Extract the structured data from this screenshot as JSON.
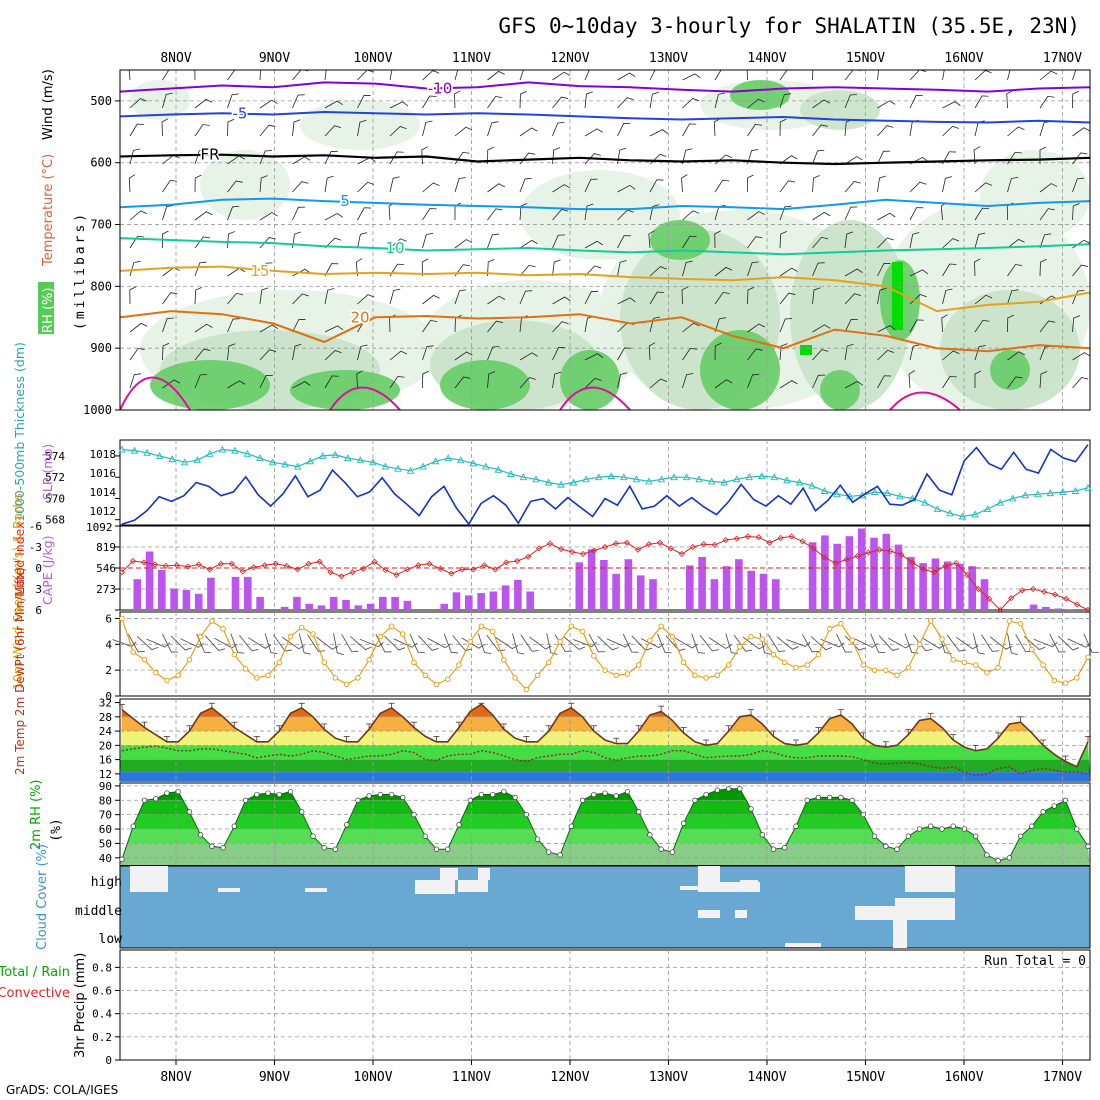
{
  "title": "GFS 0~10day 3-hourly for SHALATIN (35.5E, 23N)",
  "credit": "GrADS: COLA/IGES",
  "date_labels": [
    "8NOV",
    "9NOV",
    "10NOV",
    "11NOV",
    "12NOV",
    "13NOV",
    "14NOV",
    "15NOV",
    "16NOV",
    "17NOV"
  ],
  "colors": {
    "frame": "#000000",
    "grid": "#a0a0a0",
    "rh_light": "#e4f2e4",
    "rh_mid": "#c8e2c8",
    "rh_dark": "#66cc66",
    "rh_bright": "#00dd00",
    "iso_m10": "#8800cc",
    "iso_m5": "#2244dd",
    "iso_fr": "#000000",
    "iso_5": "#1199ee",
    "iso_10": "#11cc99",
    "iso_15": "#e6a020",
    "iso_20": "#e07010",
    "iso_25": "#dd1199",
    "slp": "#1133cc",
    "thickness": "#22bbbb",
    "lifted": "#dd2222",
    "cape": "#bb55ee",
    "wind": "#ee9900",
    "barb": "#555555",
    "temp": "#6b3a1a",
    "dewpt": "#8a2a2a",
    "rh2m": "#00aa00",
    "cloud": "#6aa8d4",
    "cloud_white": "#f2f2f2",
    "precip_total": "#00aa00",
    "precip_conv": "#ee2222"
  },
  "chart_data": [
    {
      "panel": "upper_air",
      "type": "contour",
      "ylabel_parts": [
        "RH (%)",
        "Temperature (°C)",
        "Wind (m/s)"
      ],
      "ylabel_unit": "(millibars)",
      "y_ticks": [
        500,
        600,
        700,
        800,
        900,
        1000
      ],
      "ylim": [
        1000,
        450
      ],
      "isotherms": [
        {
          "label": "-10",
          "level_mb": [
            485,
            480,
            475,
            478,
            470,
            472,
            480,
            478,
            470,
            476,
            478,
            482,
            485,
            480,
            478,
            480,
            482,
            485,
            480,
            478
          ]
        },
        {
          "label": "-5",
          "level_mb": [
            525,
            522,
            520,
            522,
            518,
            520,
            522,
            520,
            522,
            525,
            528,
            530,
            528,
            526,
            530,
            532,
            534,
            535,
            532,
            535
          ]
        },
        {
          "label": "FR",
          "level_mb": [
            590,
            588,
            587,
            590,
            588,
            592,
            590,
            598,
            595,
            592,
            596,
            598,
            596,
            600,
            602,
            600,
            598,
            596,
            595,
            592
          ]
        },
        {
          "label": "5",
          "level_mb": [
            672,
            668,
            660,
            658,
            662,
            665,
            668,
            670,
            672,
            675,
            675,
            670,
            672,
            675,
            668,
            660,
            665,
            670,
            665,
            662
          ]
        },
        {
          "label": "10",
          "level_mb": [
            722,
            725,
            728,
            730,
            735,
            738,
            742,
            740,
            738,
            742,
            745,
            742,
            745,
            748,
            745,
            742,
            740,
            738,
            735,
            732
          ]
        },
        {
          "label": "15",
          "level_mb": [
            775,
            770,
            768,
            775,
            780,
            778,
            780,
            778,
            782,
            780,
            785,
            788,
            790,
            785,
            790,
            800,
            840,
            830,
            825,
            810
          ]
        },
        {
          "label": "20",
          "level_mb": [
            850,
            840,
            845,
            860,
            890,
            850,
            848,
            852,
            850,
            845,
            860,
            850,
            880,
            900,
            870,
            880,
            900,
            905,
            895,
            900
          ]
        }
      ]
    },
    {
      "panel": "slp_thickness",
      "type": "line",
      "ylabel": "1000-500mb Thickness (dm)",
      "ylabel2": "SLP (mb)",
      "left_ticks": [
        568,
        570,
        572,
        574
      ],
      "right_ticks": [
        1012,
        1014,
        1016,
        1018
      ],
      "ylim_left": [
        567.5,
        575.5
      ],
      "ylim_right": [
        1010.5,
        1019.5
      ],
      "corner_label": "1092",
      "series": [
        {
          "name": "1000-500mb Thickness",
          "axis": "left",
          "values": [
            574.6,
            574.5,
            574.3,
            574.0,
            573.7,
            573.4,
            573.6,
            574.2,
            574.6,
            574.5,
            574.2,
            573.8,
            573.4,
            573.2,
            573.0,
            573.5,
            574.0,
            574.1,
            573.8,
            573.6,
            573.4,
            573.0,
            572.8,
            572.6,
            573.0,
            573.5,
            573.8,
            573.6,
            573.3,
            573.0,
            572.7,
            572.3,
            572.0,
            571.8,
            571.5,
            571.3,
            571.5,
            571.8,
            572.0,
            572.1,
            572.0,
            571.8,
            571.6,
            571.8,
            572.0,
            572.0,
            571.8,
            571.6,
            571.5,
            571.8,
            572.0,
            572.1,
            572.0,
            571.7,
            571.5,
            571.2,
            570.7,
            570.4,
            570.2,
            570.3,
            570.6,
            570.5,
            570.2,
            570.0,
            569.6,
            569.0,
            568.6,
            568.3,
            568.5,
            569.0,
            569.6,
            570.0,
            570.3,
            570.4,
            570.5,
            570.6,
            570.7,
            571.0
          ]
        },
        {
          "name": "SLP",
          "axis": "right",
          "values": [
            1010.6,
            1011.0,
            1012.0,
            1013.5,
            1013.0,
            1013.6,
            1015.0,
            1014.6,
            1013.6,
            1014.0,
            1015.6,
            1013.7,
            1012.5,
            1013.8,
            1015.7,
            1013.5,
            1014.2,
            1016.3,
            1015.0,
            1013.5,
            1014.0,
            1015.5,
            1013.8,
            1012.7,
            1011.5,
            1013.5,
            1014.6,
            1012.3,
            1010.6,
            1012.8,
            1013.6,
            1012.6,
            1010.7,
            1013.0,
            1013.3,
            1012.2,
            1013.4,
            1012.4,
            1011.4,
            1013.3,
            1012.6,
            1014.6,
            1012.2,
            1012.5,
            1013.6,
            1012.5,
            1013.4,
            1012.4,
            1011.6,
            1013.0,
            1014.8,
            1013.2,
            1012.5,
            1013.6,
            1012.7,
            1014.4,
            1012.0,
            1013.1,
            1014.7,
            1012.9,
            1013.8,
            1014.6,
            1012.7,
            1012.6,
            1013.2,
            1015.9,
            1014.2,
            1013.7,
            1017.3,
            1018.7,
            1017.0,
            1016.4,
            1018.2,
            1016.4,
            1016.0,
            1018.5,
            1017.6,
            1017.2,
            1019.0
          ]
        }
      ]
    },
    {
      "panel": "cape_lifted",
      "type": "bar+line",
      "ylabel": "Lifted Index",
      "ylabel2": "CAPE (J/kg)",
      "left_ticks": [
        "-6",
        "-3",
        "0",
        "3",
        "6"
      ],
      "right_ticks": [
        "273",
        "546",
        "819"
      ],
      "ylim_lifted": [
        6,
        -6
      ],
      "ylim_cape": [
        0,
        1092
      ],
      "series": [
        {
          "name": "CAPE",
          "type": "bar",
          "values": [
            0,
            400,
            760,
            520,
            280,
            260,
            210,
            420,
            0,
            430,
            430,
            170,
            0,
            40,
            170,
            80,
            60,
            170,
            130,
            60,
            80,
            170,
            170,
            120,
            0,
            0,
            80,
            230,
            190,
            220,
            240,
            320,
            390,
            240,
            0,
            0,
            0,
            620,
            790,
            650,
            470,
            660,
            450,
            400,
            0,
            0,
            580,
            690,
            400,
            570,
            660,
            510,
            470,
            400,
            0,
            0,
            880,
            970,
            860,
            960,
            1060,
            940,
            990,
            850,
            690,
            610,
            670,
            630,
            600,
            570,
            400,
            0,
            0,
            0,
            70,
            40,
            20,
            10,
            0
          ]
        },
        {
          "name": "Lifted Index",
          "type": "line",
          "values": [
            0.6,
            -1.0,
            -0.8,
            -0.5,
            -0.3,
            -0.4,
            -0.2,
            -0.5,
            0.2,
            -0.6,
            -0.6,
            0.5,
            -0.1,
            -0.4,
            -0.6,
            -0.3,
            0.2,
            -0.6,
            -0.9,
            0.6,
            1.2,
            0.6,
            0.1,
            -0.9,
            0.3,
            1.0,
            0.2,
            -0.4,
            -0.6,
            0.1,
            0.8,
            0.2,
            0.2,
            -0.4,
            0.2,
            -0.8,
            -1.0,
            -1.6,
            -2.8,
            -3.5,
            -2.7,
            -2.3,
            -2.0,
            -2.5,
            -3.0,
            -3.5,
            -3.6,
            -2.6,
            -3.4,
            -3.6,
            -2.8,
            -2.0,
            -3.0,
            -3.4,
            -3.3,
            -4.0,
            -4.2,
            -4.5,
            -4.4,
            -3.6,
            -4.3,
            -4.5,
            -3.8,
            -2.8,
            -1.5,
            -0.7,
            -1.2,
            -1.7,
            -2.2,
            -2.6,
            -2.4,
            -1.9,
            -0.8,
            0.2,
            0.6,
            -0.3,
            -0.7,
            1.0,
            3.0,
            4.4,
            6.0,
            4.3,
            3.2,
            3.0,
            3.4,
            3.8,
            4.4,
            5.2,
            6.0
          ]
        }
      ],
      "reference_line": 0
    },
    {
      "panel": "wind10m",
      "type": "line",
      "ylabel": "10m Wind Speed (m/s) & Barbs",
      "y_ticks": [
        0,
        2,
        4,
        6
      ],
      "ylim": [
        0,
        6.5
      ],
      "series": [
        {
          "name": "10m Wind Speed",
          "values": [
            6.0,
            3.4,
            2.8,
            1.8,
            1.2,
            1.6,
            2.8,
            4.6,
            5.8,
            5.2,
            3.2,
            2.1,
            1.4,
            1.6,
            2.6,
            4.6,
            5.3,
            4.8,
            2.6,
            1.4,
            0.9,
            1.4,
            2.8,
            4.6,
            5.4,
            4.8,
            2.6,
            1.6,
            0.9,
            1.3,
            2.4,
            4.2,
            5.4,
            5.0,
            2.8,
            1.4,
            0.5,
            1.6,
            2.6,
            4.2,
            5.4,
            5.0,
            3.1,
            2.0,
            1.6,
            1.7,
            2.4,
            4.3,
            5.4,
            4.6,
            2.6,
            1.6,
            1.4,
            1.6,
            2.4,
            3.8,
            4.6,
            4.4,
            3.2,
            2.6,
            2.2,
            2.4,
            3.2,
            5.2,
            5.6,
            4.3,
            2.4,
            2.0,
            2.0,
            1.6,
            2.2,
            4.0,
            5.8,
            4.4,
            2.8,
            2.6,
            2.4,
            1.8,
            2.2,
            5.8,
            5.6,
            3.6,
            2.4,
            1.2,
            1.0,
            1.4,
            3.0
          ]
        }
      ]
    },
    {
      "panel": "temp2m",
      "type": "area",
      "ylabel": "2m Temp 2m DewPt (6hr Min/Max)",
      "y_ticks": [
        12,
        16,
        20,
        24,
        28,
        32
      ],
      "ylim": [
        10,
        33
      ],
      "series": [
        {
          "name": "2m Temp",
          "values": [
            30.0,
            27.5,
            25.0,
            23.0,
            21.0,
            21.0,
            24.0,
            29.0,
            30.5,
            28.0,
            25.0,
            23.0,
            21.0,
            21.0,
            24.0,
            29.0,
            30.5,
            28.0,
            24.5,
            22.0,
            21.0,
            21.0,
            24.5,
            29.0,
            30.5,
            28.0,
            25.0,
            22.5,
            21.0,
            21.0,
            25.0,
            29.5,
            31.5,
            28.5,
            24.5,
            22.0,
            21.0,
            21.0,
            24.0,
            29.0,
            30.5,
            28.0,
            24.0,
            21.5,
            20.5,
            20.5,
            24.0,
            28.5,
            29.5,
            27.0,
            23.5,
            21.0,
            20.0,
            20.5,
            24.0,
            28.0,
            28.5,
            26.0,
            22.5,
            20.5,
            20.0,
            20.5,
            23.5,
            27.5,
            28.5,
            26.0,
            22.0,
            20.0,
            19.5,
            20.0,
            23.0,
            27.0,
            27.5,
            25.0,
            21.5,
            19.5,
            18.5,
            19.0,
            22.0,
            26.0,
            26.5,
            23.5,
            20.0,
            17.5,
            15.5,
            14.0,
            21.0
          ]
        },
        {
          "name": "2m DewPt",
          "values": [
            18.5,
            19.0,
            19.5,
            19.8,
            19.2,
            18.5,
            18.5,
            19.0,
            19.0,
            18.5,
            18.0,
            17.5,
            16.5,
            17.0,
            17.5,
            17.0,
            17.5,
            18.5,
            18.0,
            17.0,
            16.0,
            16.5,
            17.0,
            17.0,
            17.5,
            18.5,
            18.0,
            16.0,
            15.8,
            17.0,
            17.5,
            17.5,
            18.5,
            18.0,
            17.0,
            16.0,
            15.5,
            16.5,
            17.0,
            17.5,
            17.5,
            18.5,
            18.0,
            16.5,
            15.8,
            16.5,
            17.0,
            17.0,
            17.5,
            18.5,
            18.5,
            17.5,
            16.5,
            16.8,
            17.0,
            17.0,
            17.5,
            18.5,
            18.0,
            17.0,
            16.5,
            16.5,
            17.0,
            17.0,
            17.0,
            16.8,
            16.0,
            15.0,
            14.8,
            15.0,
            15.2,
            14.8,
            14.0,
            13.5,
            14.0,
            12.5,
            11.5,
            12.0,
            13.5,
            14.0,
            12.0,
            13.0,
            13.5,
            13.0,
            12.5,
            12.5,
            12.0
          ]
        }
      ]
    },
    {
      "panel": "rh2m",
      "type": "area",
      "ylabel": "2m RH (%)",
      "y_ticks": [
        40,
        50,
        60,
        70,
        80,
        90
      ],
      "ylim": [
        35,
        92
      ],
      "series": [
        {
          "name": "2m RH",
          "values": [
            39,
            62,
            80,
            81,
            85,
            86,
            72,
            56,
            48,
            47,
            62,
            80,
            84,
            85,
            84,
            86,
            72,
            55,
            47,
            46,
            63,
            80,
            83,
            84,
            84,
            82,
            70,
            55,
            46,
            46,
            63,
            80,
            84,
            84,
            86,
            82,
            70,
            53,
            44,
            42,
            62,
            80,
            84,
            85,
            83,
            86,
            72,
            56,
            46,
            44,
            64,
            80,
            84,
            87,
            88,
            88,
            74,
            56,
            46,
            47,
            62,
            80,
            82,
            82,
            82,
            80,
            70,
            55,
            48,
            46,
            55,
            60,
            62,
            60,
            62,
            60,
            55,
            42,
            38,
            40,
            55,
            62,
            72,
            76,
            80,
            60,
            48
          ]
        }
      ]
    },
    {
      "panel": "cloud",
      "type": "heatmap",
      "ylabel": "Cloud Cover (%)",
      "levels": [
        "high",
        "middle",
        "low"
      ]
    },
    {
      "panel": "precip",
      "type": "bar",
      "ylabel": "3hr Precip (mm)",
      "legend": [
        "Total / Rain",
        "Convective"
      ],
      "run_total": "Run Total = 0",
      "y_ticks": [
        "0",
        "0.2",
        "0.4",
        "0.6",
        "0.8"
      ],
      "ylim": [
        0,
        0.95
      ],
      "values": []
    }
  ]
}
